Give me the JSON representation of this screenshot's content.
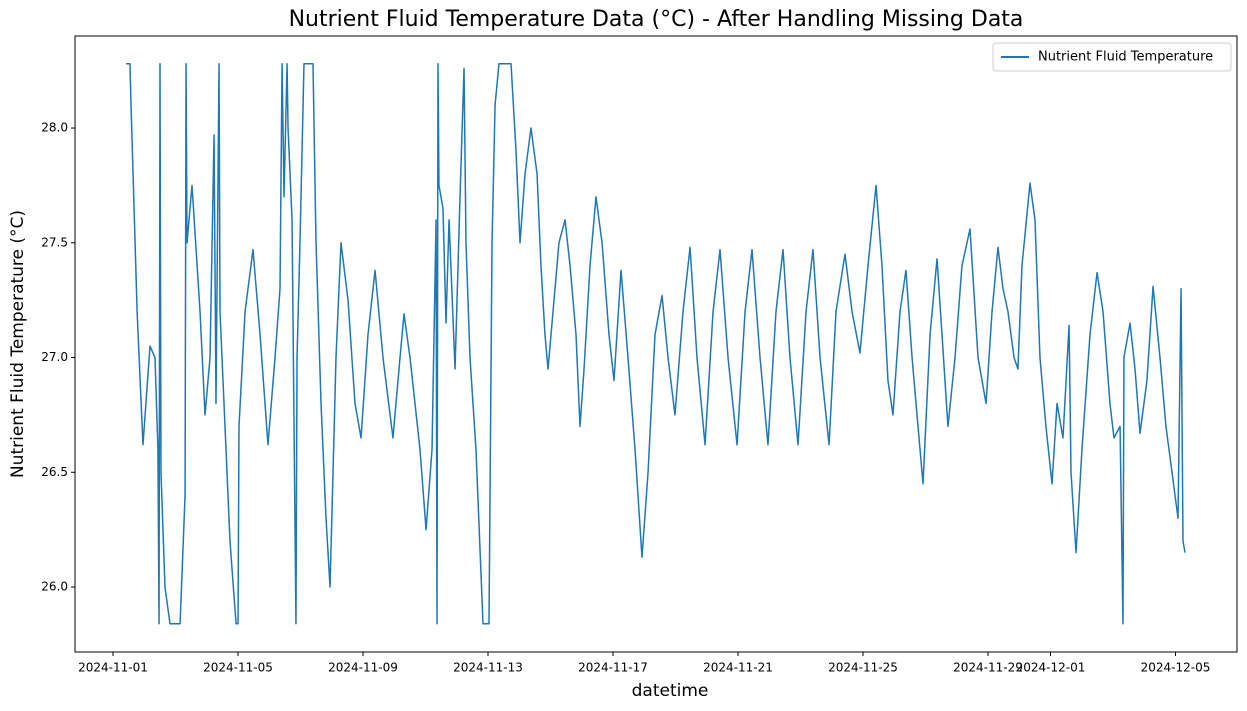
{
  "chart_data": {
    "type": "line",
    "title": "Nutrient Fluid Temperature Data (°C) - After Handling Missing Data",
    "x_label": "datetime",
    "y_label": "Nutrient Fluid Temperature (°C)",
    "legend": "upper right",
    "grid": false,
    "x": [
      "2024-11-01 10:00",
      "2024-11-01 13:00",
      "2024-11-01 13:50",
      "2024-11-01 18:30",
      "2024-11-01 23:00",
      "2024-11-02 04:25",
      "2024-11-02 08:15",
      "2024-11-02 10:30",
      "2024-11-02 11:20",
      "2024-11-02 12:05",
      "2024-11-02 12:50",
      "2024-11-02 15:55",
      "2024-11-02 19:45",
      "2024-11-03 03:30",
      "2024-11-03 07:20",
      "2024-11-03 08:05",
      "2024-11-03 08:50",
      "2024-11-03 12:40",
      "2024-11-03 18:50",
      "2024-11-03 22:40",
      "2024-11-04 02:30",
      "2024-11-04 05:35",
      "2024-11-04 07:05",
      "2024-11-04 09:25",
      "2024-11-04 10:10",
      "2024-11-04 17:50",
      "2024-11-04 22:30",
      "2024-11-05 00:00",
      "2024-11-05 00:45",
      "2024-11-05 05:25",
      "2024-11-05 11:30",
      "2024-11-05 16:55",
      "2024-11-05 23:00",
      "2024-11-06 04:25",
      "2024-11-06 08:15",
      "2024-11-06 09:50",
      "2024-11-06 11:20",
      "2024-11-06 13:40",
      "2024-11-06 14:25",
      "2024-11-06 17:30",
      "2024-11-06 20:30",
      "2024-11-06 21:20",
      "2024-11-06 23:35",
      "2024-11-07 02:40",
      "2024-11-07 09:35",
      "2024-11-07 11:55",
      "2024-11-07 15:45",
      "2024-11-07 19:35",
      "2024-11-07 22:40",
      "2024-11-08 03:15",
      "2024-11-08 07:05",
      "2024-11-08 12:30",
      "2024-11-08 17:50",
      "2024-11-08 22:30",
      "2024-11-09 03:50",
      "2024-11-09 09:15",
      "2024-11-09 15:20",
      "2024-11-09 23:00",
      "2024-11-10 04:25",
      "2024-11-10 07:30",
      "2024-11-10 12:05",
      "2024-11-10 19:45",
      "2024-11-11 00:25",
      "2024-11-11 05:00",
      "2024-11-11 08:05",
      "2024-11-11 08:50",
      "2024-11-11 09:35",
      "2024-11-11 10:20",
      "2024-11-11 13:25",
      "2024-11-11 15:45",
      "2024-11-11 18:05",
      "2024-11-11 22:40",
      "2024-11-12 02:30",
      "2024-11-12 05:35",
      "2024-11-12 07:05",
      "2024-11-12 10:10",
      "2024-11-12 14:45",
      "2024-11-12 20:10",
      "2024-11-13 00:45",
      "2024-11-13 03:05",
      "2024-11-13 05:25",
      "2024-11-13 08:25",
      "2024-11-13 17:40",
      "2024-11-13 21:30",
      "2024-11-14 00:35",
      "2024-11-14 04:25",
      "2024-11-14 09:00",
      "2024-11-14 13:40",
      "2024-11-14 16:40",
      "2024-11-14 19:45",
      "2024-11-14 22:05",
      "2024-11-15 01:55",
      "2024-11-15 06:30",
      "2024-11-15 11:10",
      "2024-11-15 15:00",
      "2024-11-15 19:35",
      "2024-11-15 22:40",
      "2024-11-16 01:45",
      "2024-11-16 06:20",
      "2024-11-16 10:55",
      "2024-11-16 15:35",
      "2024-11-16 20:55",
      "2024-11-17 00:45",
      "2024-11-17 06:10",
      "2024-11-17 11:30",
      "2024-11-17 16:55",
      "2024-11-17 22:15",
      "2024-11-18 02:55",
      "2024-11-18 08:15",
      "2024-11-18 13:40",
      "2024-11-18 18:15",
      "2024-11-18 23:35",
      "2024-11-19 05:45",
      "2024-11-19 11:10",
      "2024-11-19 16:30",
      "2024-11-19 22:40",
      "2024-11-20 04:50",
      "2024-11-20 10:10",
      "2024-11-20 16:20",
      "2024-11-20 23:15",
      "2024-11-21 05:25",
      "2024-11-21 10:45",
      "2024-11-21 16:55",
      "2024-11-21 23:00",
      "2024-11-22 05:10",
      "2024-11-22 10:35",
      "2024-11-22 15:55",
      "2024-11-22 22:05",
      "2024-11-23 04:15",
      "2024-11-23 09:35",
      "2024-11-23 15:00",
      "2024-11-23 21:55",
      "2024-11-24 03:15",
      "2024-11-24 10:10",
      "2024-11-24 15:35",
      "2024-11-24 21:40",
      "2024-11-25 03:50",
      "2024-11-25 10:00",
      "2024-11-25 14:35",
      "2024-11-25 19:10",
      "2024-11-25 23:00",
      "2024-11-26 04:25",
      "2024-11-26 09:00",
      "2024-11-26 13:40",
      "2024-11-26 18:15",
      "2024-11-26 22:05",
      "2024-11-27 03:30",
      "2024-11-27 08:50",
      "2024-11-27 12:40",
      "2024-11-27 17:15",
      "2024-11-27 22:40",
      "2024-11-28 04:00",
      "2024-11-28 10:10",
      "2024-11-28 16:20",
      "2024-11-28 22:30",
      "2024-11-29 03:05",
      "2024-11-29 07:40",
      "2024-11-29 11:30",
      "2024-11-29 15:20",
      "2024-11-29 20:00",
      "2024-11-29 23:00",
      "2024-11-30 02:05",
      "2024-11-30 08:15",
      "2024-11-30 12:05",
      "2024-11-30 15:55",
      "2024-11-30 20:30",
      "2024-12-01 01:10",
      "2024-12-01 05:00",
      "2024-12-01 09:35",
      "2024-12-01 14:15",
      "2024-12-01 15:45",
      "2024-12-01 19:35",
      "2024-12-02 00:10",
      "2024-12-02 06:20",
      "2024-12-02 11:45",
      "2024-12-02 16:20",
      "2024-12-02 21:40",
      "2024-12-03 00:45",
      "2024-12-03 05:25",
      "2024-12-03 07:40",
      "2024-12-03 08:25",
      "2024-12-03 13:05",
      "2024-12-03 16:55",
      "2024-12-03 20:45",
      "2024-12-04 02:05",
      "2024-12-04 06:45",
      "2024-12-04 12:05",
      "2024-12-04 16:40",
      "2024-12-04 21:20",
      "2024-12-05 01:55",
      "2024-12-05 04:15",
      "2024-12-05 05:45",
      "2024-12-05 07:20"
    ],
    "series": [
      {
        "name": "Nutrient Fluid Temperature",
        "color": "#1f77b4",
        "values": [
          28.28,
          28.28,
          28.1,
          27.2,
          26.62,
          27.05,
          27.0,
          26.6,
          25.84,
          28.28,
          26.5,
          26.0,
          25.84,
          25.84,
          26.4,
          28.28,
          27.5,
          27.75,
          27.2,
          26.75,
          27.0,
          27.97,
          26.8,
          28.28,
          27.2,
          26.2,
          25.84,
          25.84,
          26.7,
          27.2,
          27.47,
          27.1,
          26.62,
          27.0,
          27.3,
          28.28,
          27.7,
          28.28,
          28.0,
          27.6,
          25.84,
          27.0,
          27.5,
          28.28,
          28.28,
          27.5,
          26.8,
          26.3,
          26.0,
          27.0,
          27.5,
          27.25,
          26.8,
          26.65,
          27.1,
          27.38,
          27.0,
          26.65,
          27.0,
          27.19,
          27.0,
          26.6,
          26.25,
          26.6,
          27.6,
          25.84,
          28.28,
          27.75,
          27.65,
          27.15,
          27.6,
          26.95,
          27.7,
          28.26,
          27.5,
          27.0,
          26.6,
          25.84,
          25.84,
          27.5,
          28.1,
          28.28,
          28.28,
          27.9,
          27.5,
          27.8,
          28.0,
          27.8,
          27.4,
          27.1,
          26.95,
          27.2,
          27.5,
          27.6,
          27.4,
          27.1,
          26.7,
          26.95,
          27.4,
          27.7,
          27.5,
          27.1,
          26.9,
          27.38,
          27.0,
          26.6,
          26.13,
          26.5,
          27.1,
          27.27,
          27.0,
          26.75,
          27.2,
          27.48,
          27.0,
          26.62,
          27.2,
          27.47,
          27.0,
          26.62,
          27.2,
          27.47,
          27.0,
          26.62,
          27.2,
          27.47,
          27.0,
          26.62,
          27.2,
          27.47,
          27.0,
          26.62,
          27.2,
          27.45,
          27.2,
          27.02,
          27.4,
          27.75,
          27.4,
          26.9,
          26.75,
          27.2,
          27.38,
          27.0,
          26.7,
          26.45,
          27.1,
          27.43,
          27.1,
          26.7,
          27.0,
          27.4,
          27.56,
          27.0,
          26.8,
          27.2,
          27.48,
          27.3,
          27.2,
          27.0,
          26.95,
          27.4,
          27.76,
          27.6,
          27.0,
          26.7,
          26.45,
          26.8,
          26.65,
          27.14,
          26.5,
          26.15,
          26.6,
          27.1,
          27.37,
          27.2,
          26.8,
          26.65,
          26.7,
          25.84,
          27.0,
          27.15,
          26.95,
          26.67,
          26.9,
          27.31,
          27.0,
          26.7,
          26.5,
          26.3,
          27.3,
          26.2,
          26.15
        ]
      }
    ],
    "xlim": [
      "2024-10-30 18:48",
      "2024-12-06 23:14"
    ],
    "xticks": [
      "2024-11-01",
      "2024-11-05",
      "2024-11-09",
      "2024-11-13",
      "2024-11-17",
      "2024-11-21",
      "2024-11-25",
      "2024-11-29",
      "2024-12-01",
      "2024-12-05"
    ],
    "ylim": [
      25.717,
      28.401
    ],
    "yticks": [
      {
        "value": 26,
        "label": "26.0"
      },
      26.5,
      {
        "value": 27,
        "label": "27.0"
      },
      27.5,
      {
        "value": 28,
        "label": "28.0"
      }
    ]
  }
}
